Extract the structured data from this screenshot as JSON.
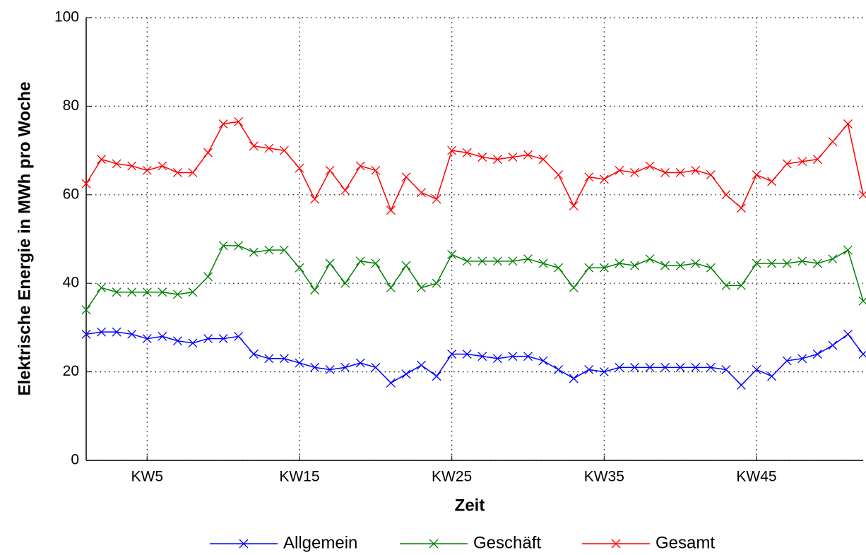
{
  "chart_data": {
    "type": "line",
    "xlabel": "Zeit",
    "ylabel": "Elektrische Energie in MWh pro Woche",
    "x": [
      1,
      2,
      3,
      4,
      5,
      6,
      7,
      8,
      9,
      10,
      11,
      12,
      13,
      14,
      15,
      16,
      17,
      18,
      19,
      20,
      21,
      22,
      23,
      24,
      25,
      26,
      27,
      28,
      29,
      30,
      31,
      32,
      33,
      34,
      35,
      36,
      37,
      38,
      39,
      40,
      41,
      42,
      43,
      44,
      45,
      46,
      47,
      48,
      49,
      50,
      51,
      52
    ],
    "xlim": [
      1,
      52
    ],
    "xticks": [
      {
        "value": 5,
        "label": "KW5"
      },
      {
        "value": 15,
        "label": "KW15"
      },
      {
        "value": 25,
        "label": "KW25"
      },
      {
        "value": 35,
        "label": "KW35"
      },
      {
        "value": 45,
        "label": "KW45"
      }
    ],
    "ylim": [
      0,
      100
    ],
    "yticks": [
      0,
      20,
      40,
      60,
      80,
      100
    ],
    "grid": true,
    "legend": "bottom",
    "series": [
      {
        "name": "Allgemein",
        "color": "#0000ff",
        "values": [
          28.5,
          29,
          29,
          28.5,
          27.5,
          28,
          27,
          26.5,
          27.5,
          27.5,
          28,
          24,
          23,
          23,
          22,
          21,
          20.5,
          21,
          22,
          21,
          17.5,
          19.5,
          21.5,
          19,
          24,
          24,
          23.5,
          23,
          23.5,
          23.5,
          22.5,
          20.5,
          18.5,
          20.5,
          20,
          21,
          21,
          21,
          21,
          21,
          21,
          21,
          20.5,
          17,
          20.5,
          19,
          22.5,
          23,
          24,
          26,
          28.5,
          24
        ]
      },
      {
        "name": "Geschäft",
        "color": "#008000",
        "values": [
          34,
          39,
          38,
          38,
          38,
          38,
          37.5,
          38,
          41.5,
          48.5,
          48.5,
          47,
          47.5,
          47.5,
          43.5,
          38.5,
          44.5,
          40,
          45,
          44.5,
          39,
          44,
          39,
          40,
          46.5,
          45,
          45,
          45,
          45,
          45.5,
          44.5,
          43.5,
          39,
          43.5,
          43.5,
          44.5,
          44,
          45.5,
          44,
          44,
          44.5,
          43.5,
          39.5,
          39.5,
          44.5,
          44.5,
          44.5,
          45,
          44.5,
          45.5,
          47.5,
          36
        ]
      },
      {
        "name": "Gesamt",
        "color": "#ff0000",
        "values": [
          62.5,
          68,
          67,
          66.5,
          65.5,
          66.5,
          65,
          65,
          69.5,
          76,
          76.5,
          71,
          70.5,
          70,
          66,
          59,
          65.5,
          61,
          66.5,
          65.5,
          56.5,
          64,
          60.5,
          59,
          70,
          69.5,
          68.5,
          68,
          68.5,
          69,
          68,
          64.5,
          57.5,
          64,
          63.5,
          65.5,
          65,
          66.5,
          65,
          65,
          65.5,
          64.5,
          60,
          57,
          64.5,
          63,
          67,
          67.5,
          68,
          72,
          76,
          60
        ]
      }
    ]
  }
}
